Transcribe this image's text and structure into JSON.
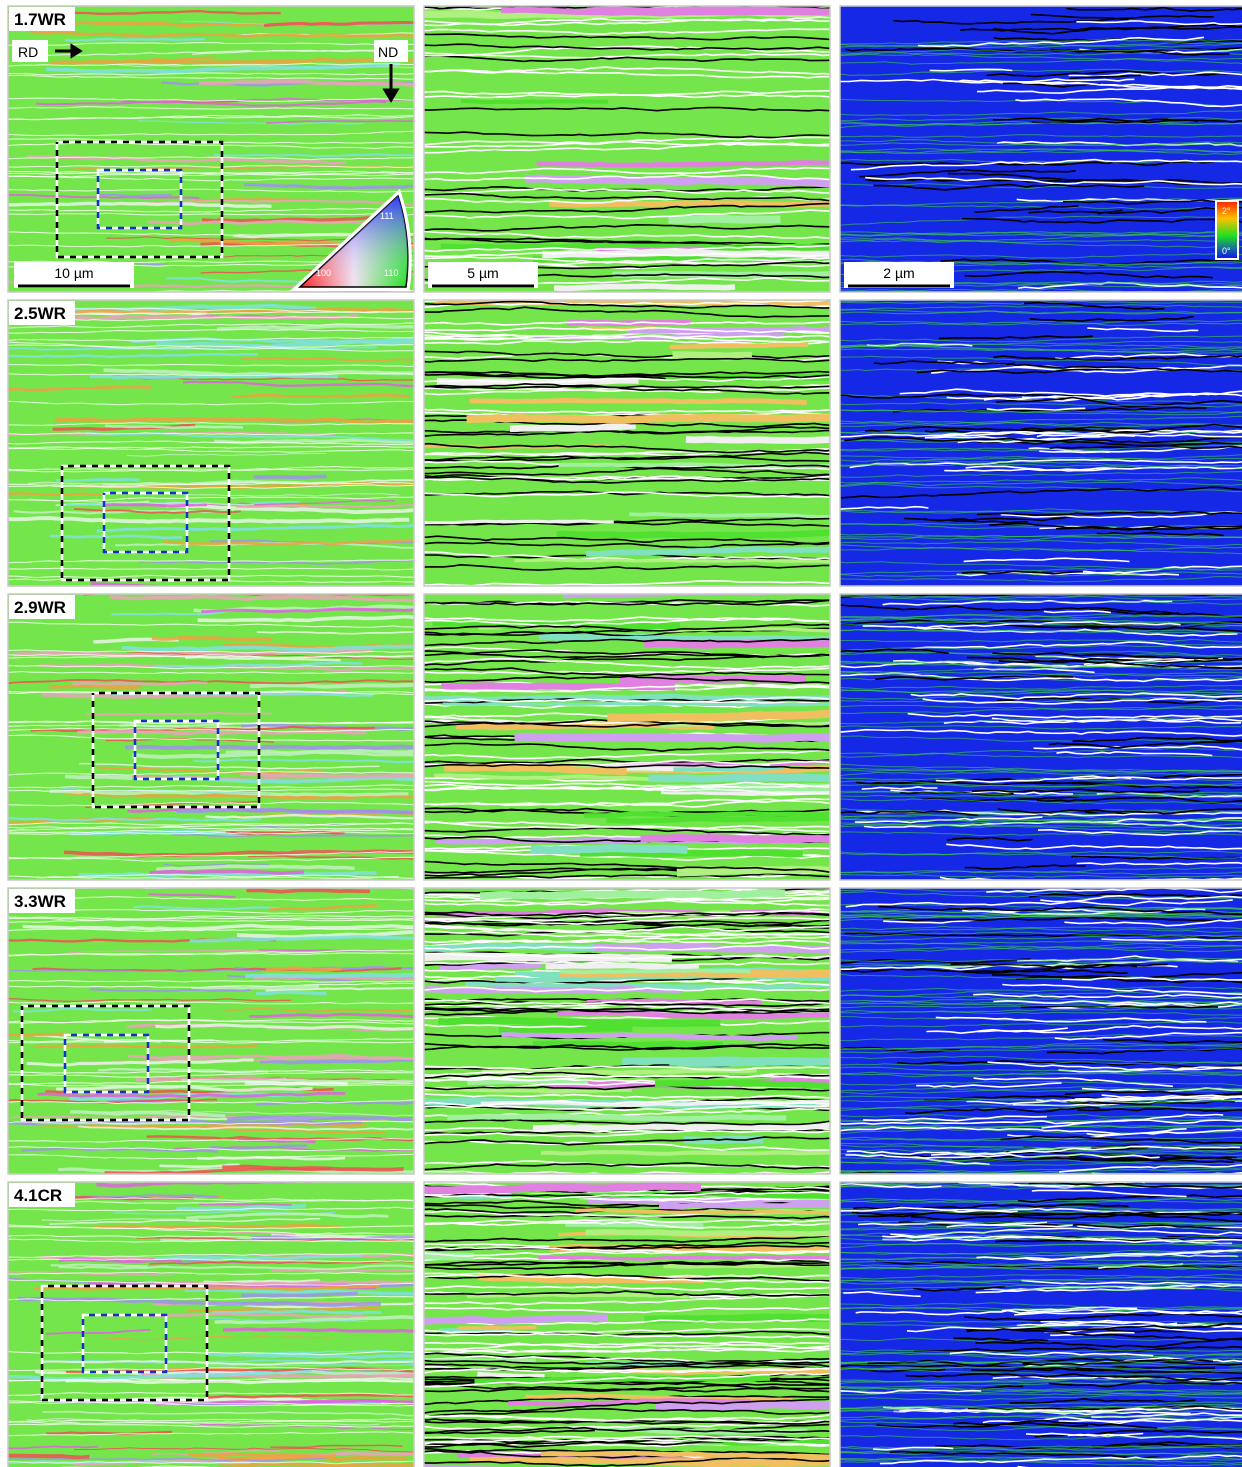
{
  "rows": [
    {
      "label": "1.7WR"
    },
    {
      "label": "2.5WR"
    },
    {
      "label": "2.9WR"
    },
    {
      "label": "3.3WR"
    },
    {
      "label": "4.1CR"
    }
  ],
  "directions": {
    "rd": "RD",
    "nd": "ND"
  },
  "scale_bars": [
    "10 µm",
    "5 µm",
    "2 µm"
  ],
  "ipf_key": {
    "top": "111",
    "left": "100",
    "right": "110"
  },
  "misorientation_key": {
    "max": "2°",
    "min": "0°"
  }
}
